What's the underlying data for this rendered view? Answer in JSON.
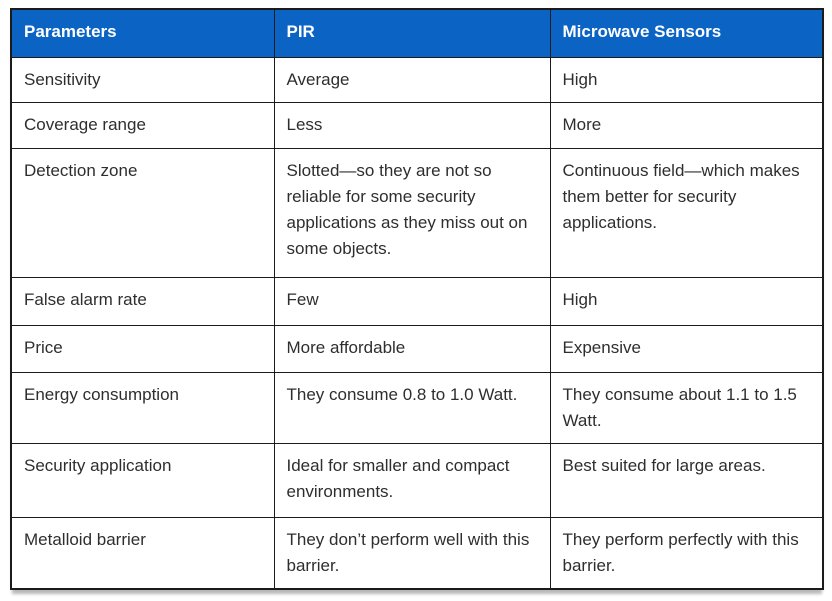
{
  "table": {
    "columns": [
      "Parameters",
      "PIR",
      "Microwave Sensors"
    ],
    "rows": [
      {
        "parameter": "Sensitivity",
        "pir": "Average",
        "microwave": "High"
      },
      {
        "parameter": "Coverage range",
        "pir": "Less",
        "microwave": "More"
      },
      {
        "parameter": "Detection zone",
        "pir": "Slotted—so they are not so reliable for some security applications as they miss out on some objects.",
        "microwave": "Continuous field—which makes them better for security applications."
      },
      {
        "parameter": "False alarm rate",
        "pir": "Few",
        "microwave": "High"
      },
      {
        "parameter": "Price",
        "pir": "More affordable",
        "microwave": "Expensive"
      },
      {
        "parameter": "Energy consumption",
        "pir": "They consume 0.8 to 1.0 Watt.",
        "microwave": "They consume about 1.1 to 1.5 Watt."
      },
      {
        "parameter": "Security application",
        "pir": "Ideal for smaller and compact environments.",
        "microwave": "Best suited for large areas."
      },
      {
        "parameter": "Metalloid barrier",
        "pir": "They don’t perform well with this barrier.",
        "microwave": "They perform perfectly with this barrier."
      }
    ]
  },
  "colors": {
    "header_bg": "#0B64C4",
    "header_text": "#FFFFFF",
    "border": "#1B1B1B",
    "body_text": "#2E2E2E",
    "table_bg": "#FFFFFF"
  }
}
